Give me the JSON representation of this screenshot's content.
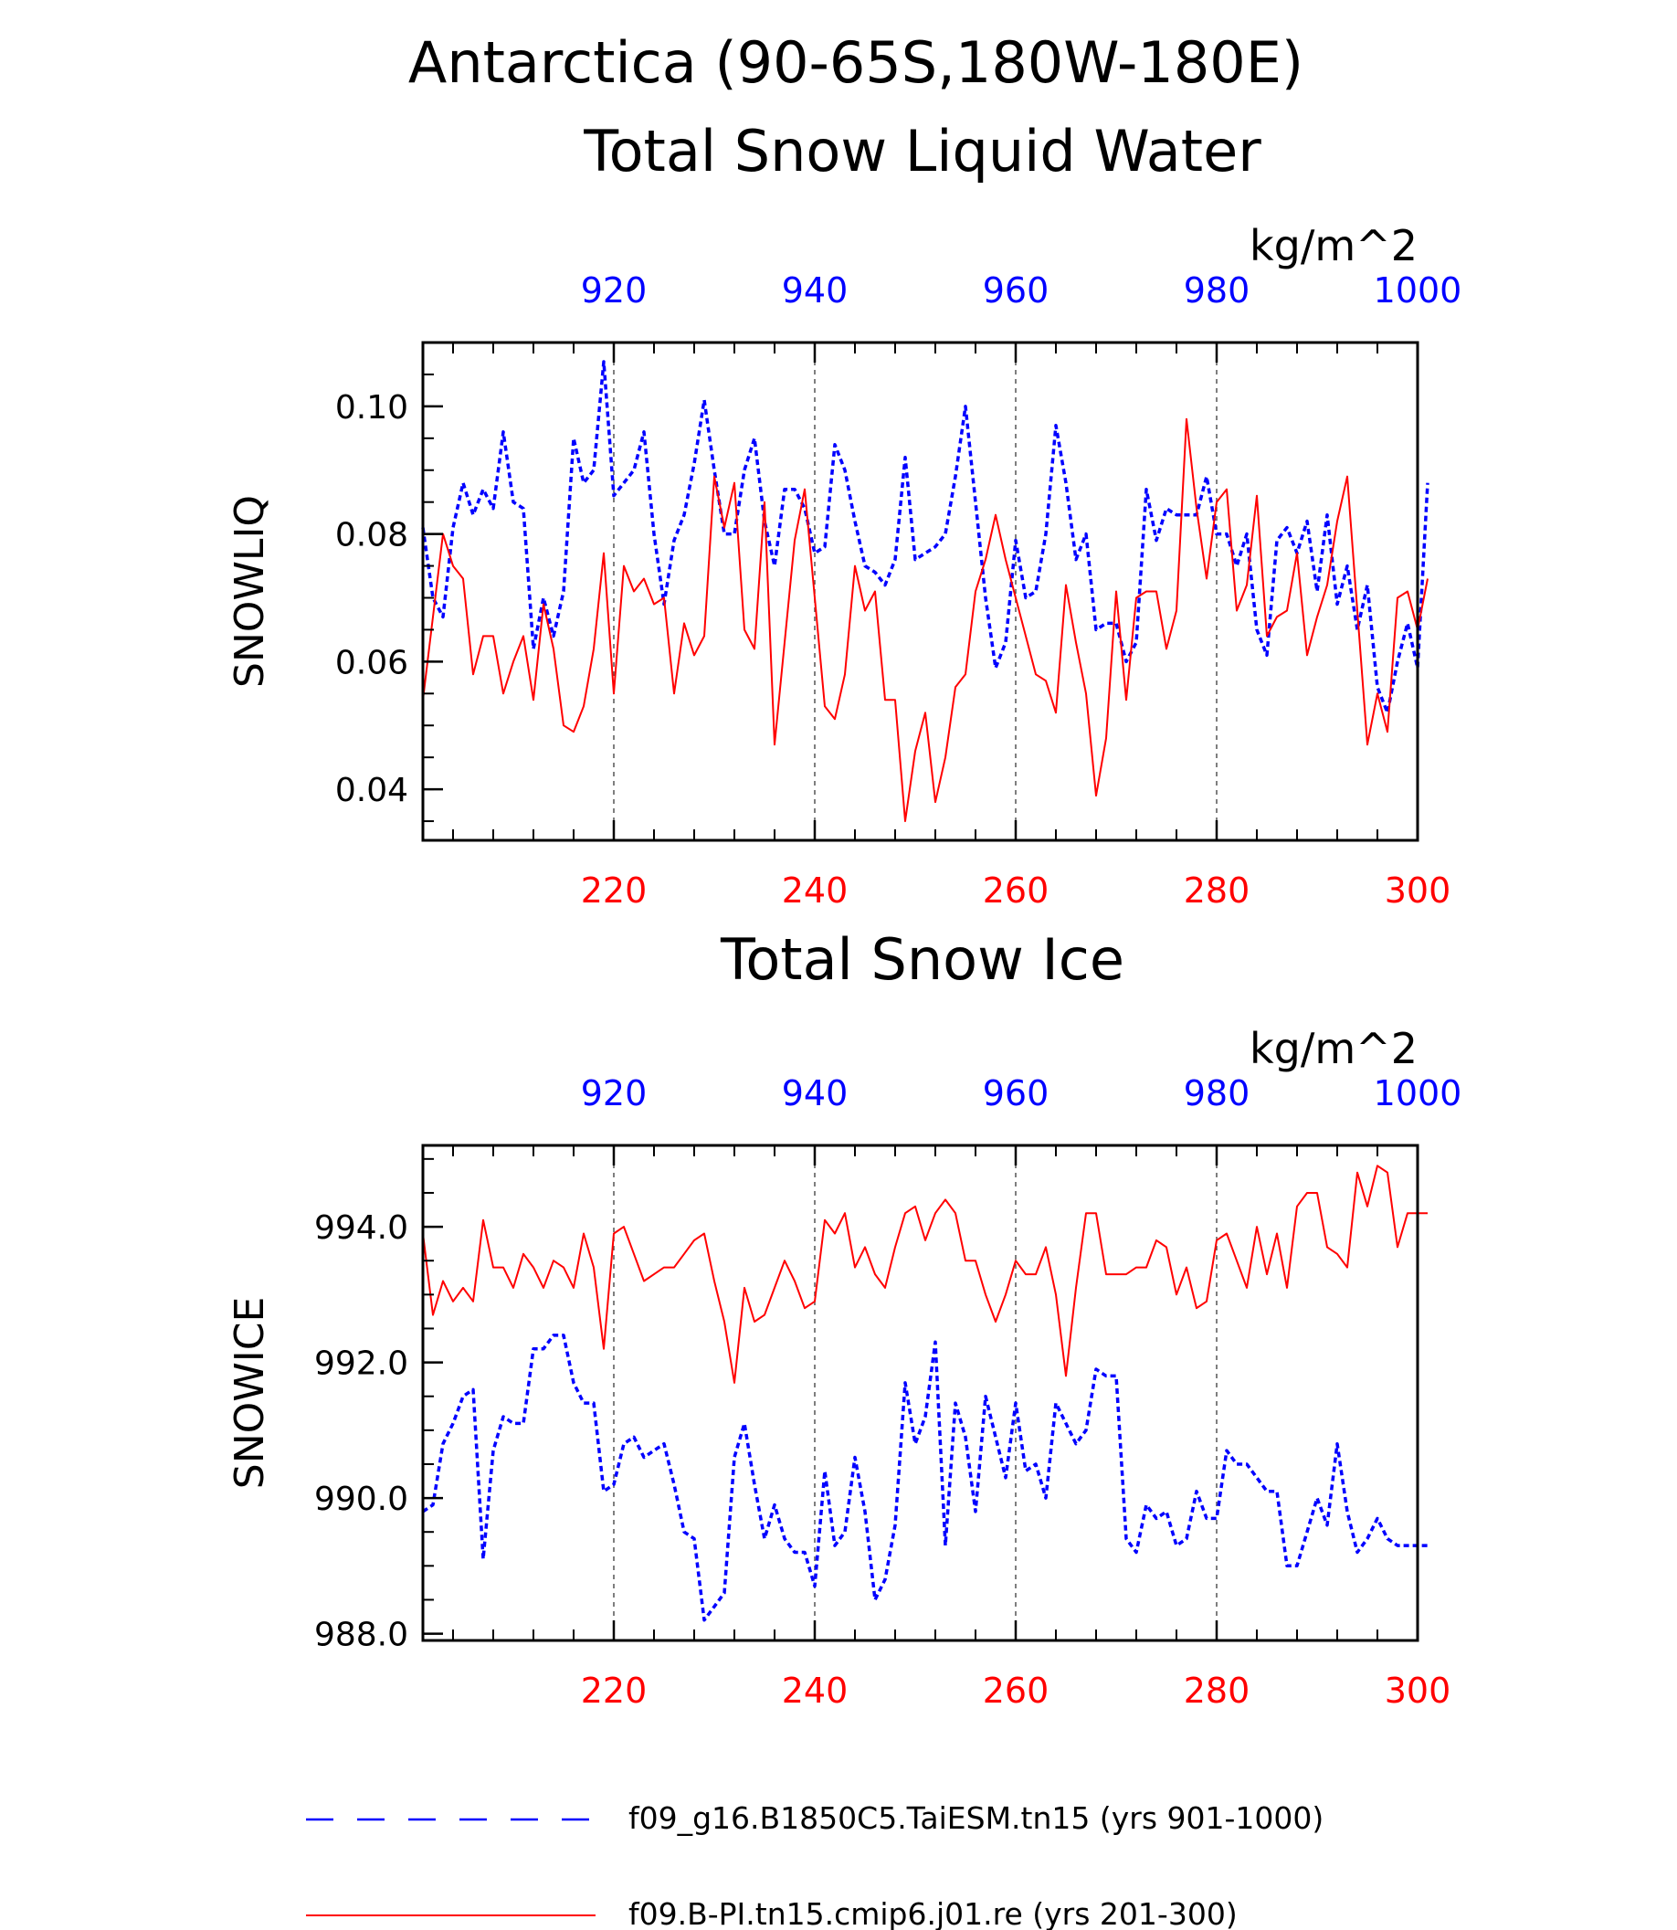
{
  "header": {
    "title_line1": "Antarctica (90-65S,180W-180E)"
  },
  "colors": {
    "red": "#ff0000",
    "blue": "#0000ff",
    "black": "#000000"
  },
  "legend": {
    "entries": [
      {
        "label": "f09_g16.B1850C5.TaiESM.tn15 (yrs 901-1000)",
        "color": "#0000ff",
        "style": "dashed"
      },
      {
        "label": "f09.B-PI.tn15.cmip6.j01.re (yrs 201-300)",
        "color": "#ff0000",
        "style": "solid"
      }
    ]
  },
  "chart_data": [
    {
      "type": "line",
      "title": "Total Snow Liquid Water",
      "ylabel": "SNOWLIQ",
      "units": "kg/m^2",
      "ylim": [
        0.032,
        0.11
      ],
      "yticks": [
        0.04,
        0.06,
        0.08,
        0.1
      ],
      "ytick_labels": [
        "0.04",
        "0.06",
        "0.08",
        "0.10"
      ],
      "y_minor_step": 0.005,
      "x_bottom": {
        "range": [
          201,
          300
        ],
        "ticks": [
          220,
          240,
          260,
          280,
          300
        ],
        "color": "#ff0000"
      },
      "x_top": {
        "range": [
          901,
          1000
        ],
        "ticks": [
          920,
          940,
          960,
          980,
          1000
        ],
        "color": "#0000ff"
      },
      "x_minor_step": 4,
      "grid": "vertical dashed at major ticks",
      "series": [
        {
          "name": "f09_g16.B1850C5.TaiESM.tn15 (yrs 901-1000)",
          "color": "#0000ff",
          "style": "dashed",
          "axis": "top",
          "values": [
            0.081,
            0.07,
            0.067,
            0.081,
            0.088,
            0.083,
            0.087,
            0.084,
            0.096,
            0.085,
            0.084,
            0.062,
            0.07,
            0.064,
            0.071,
            0.095,
            0.088,
            0.09,
            0.107,
            0.086,
            0.088,
            0.09,
            0.096,
            0.08,
            0.069,
            0.079,
            0.083,
            0.091,
            0.101,
            0.09,
            0.08,
            0.08,
            0.09,
            0.095,
            0.082,
            0.075,
            0.087,
            0.087,
            0.084,
            0.077,
            0.078,
            0.094,
            0.09,
            0.082,
            0.075,
            0.074,
            0.072,
            0.076,
            0.092,
            0.076,
            0.077,
            0.078,
            0.08,
            0.089,
            0.1,
            0.085,
            0.07,
            0.059,
            0.063,
            0.079,
            0.07,
            0.071,
            0.08,
            0.097,
            0.088,
            0.076,
            0.08,
            0.065,
            0.066,
            0.066,
            0.06,
            0.063,
            0.087,
            0.079,
            0.084,
            0.083,
            0.083,
            0.083,
            0.089,
            0.08,
            0.08,
            0.075,
            0.08,
            0.065,
            0.061,
            0.079,
            0.081,
            0.077,
            0.082,
            0.071,
            0.083,
            0.069,
            0.075,
            0.065,
            0.072,
            0.056,
            0.052,
            0.06,
            0.066,
            0.059,
            0.088
          ]
        },
        {
          "name": "f09.B-PI.tn15.cmip6.j01.re (yrs 201-300)",
          "color": "#ff0000",
          "style": "solid",
          "axis": "bottom",
          "values": [
            0.054,
            0.067,
            0.08,
            0.075,
            0.073,
            0.058,
            0.064,
            0.064,
            0.055,
            0.06,
            0.064,
            0.054,
            0.069,
            0.062,
            0.05,
            0.049,
            0.053,
            0.062,
            0.077,
            0.055,
            0.075,
            0.071,
            0.073,
            0.069,
            0.07,
            0.055,
            0.066,
            0.061,
            0.064,
            0.089,
            0.081,
            0.088,
            0.065,
            0.062,
            0.085,
            0.047,
            0.063,
            0.079,
            0.087,
            0.07,
            0.053,
            0.051,
            0.058,
            0.075,
            0.068,
            0.071,
            0.054,
            0.054,
            0.035,
            0.046,
            0.052,
            0.038,
            0.045,
            0.056,
            0.058,
            0.071,
            0.076,
            0.083,
            0.076,
            0.07,
            0.064,
            0.058,
            0.057,
            0.052,
            0.072,
            0.063,
            0.055,
            0.039,
            0.048,
            0.071,
            0.054,
            0.07,
            0.071,
            0.071,
            0.062,
            0.068,
            0.098,
            0.084,
            0.073,
            0.085,
            0.087,
            0.068,
            0.072,
            0.086,
            0.064,
            0.067,
            0.068,
            0.077,
            0.061,
            0.067,
            0.072,
            0.082,
            0.089,
            0.068,
            0.047,
            0.055,
            0.049,
            0.07,
            0.071,
            0.065,
            0.073
          ]
        }
      ]
    },
    {
      "type": "line",
      "title": "Total Snow Ice",
      "ylabel": "SNOWICE",
      "units": "kg/m^2",
      "ylim": [
        987.9,
        995.2
      ],
      "yticks": [
        988.0,
        990.0,
        992.0,
        994.0
      ],
      "ytick_labels": [
        "988.0",
        "990.0",
        "992.0",
        "994.0"
      ],
      "y_minor_step": 0.5,
      "x_bottom": {
        "range": [
          201,
          300
        ],
        "ticks": [
          220,
          240,
          260,
          280,
          300
        ],
        "color": "#ff0000"
      },
      "x_top": {
        "range": [
          901,
          1000
        ],
        "ticks": [
          920,
          940,
          960,
          980,
          1000
        ],
        "color": "#0000ff"
      },
      "x_minor_step": 4,
      "grid": "vertical dashed at major ticks",
      "series": [
        {
          "name": "f09_g16.B1850C5.TaiESM.tn15 (yrs 901-1000)",
          "color": "#0000ff",
          "style": "dashed",
          "axis": "top",
          "values": [
            989.8,
            989.9,
            990.8,
            991.1,
            991.5,
            991.6,
            989.1,
            990.7,
            991.2,
            991.1,
            991.1,
            992.2,
            992.2,
            992.4,
            992.4,
            991.7,
            991.4,
            991.4,
            990.1,
            990.2,
            990.8,
            990.9,
            990.6,
            990.7,
            990.8,
            990.2,
            989.5,
            989.4,
            988.2,
            988.4,
            988.6,
            990.6,
            991.1,
            990.2,
            989.4,
            989.9,
            989.4,
            989.2,
            989.2,
            988.7,
            990.4,
            989.3,
            989.5,
            990.6,
            989.8,
            988.5,
            988.8,
            989.6,
            991.7,
            990.8,
            991.2,
            992.3,
            989.3,
            991.4,
            990.9,
            989.8,
            991.5,
            990.9,
            990.3,
            991.4,
            990.4,
            990.5,
            990.0,
            991.4,
            991.1,
            990.8,
            991.0,
            991.9,
            991.8,
            991.8,
            989.4,
            989.2,
            989.9,
            989.7,
            989.8,
            989.3,
            989.4,
            990.1,
            989.7,
            989.7,
            990.7,
            990.5,
            990.5,
            990.3,
            990.1,
            990.1,
            989.0,
            989.0,
            989.5,
            990.0,
            989.6,
            990.8,
            989.8,
            989.2,
            989.4,
            989.7,
            989.4,
            989.3,
            989.3,
            989.3,
            989.3
          ]
        },
        {
          "name": "f09.B-PI.tn15.cmip6.j01.re (yrs 201-300)",
          "color": "#ff0000",
          "style": "solid",
          "axis": "bottom",
          "values": [
            993.9,
            992.7,
            993.2,
            992.9,
            993.1,
            992.9,
            994.1,
            993.4,
            993.4,
            993.1,
            993.6,
            993.4,
            993.1,
            993.5,
            993.4,
            993.1,
            993.9,
            993.4,
            992.2,
            993.9,
            994.0,
            993.6,
            993.2,
            993.3,
            993.4,
            993.4,
            993.6,
            993.8,
            993.9,
            993.2,
            992.6,
            991.7,
            993.1,
            992.6,
            992.7,
            993.1,
            993.5,
            993.2,
            992.8,
            992.9,
            994.1,
            993.9,
            994.2,
            993.4,
            993.7,
            993.3,
            993.1,
            993.7,
            994.2,
            994.3,
            993.8,
            994.2,
            994.4,
            994.2,
            993.5,
            993.5,
            993.0,
            992.6,
            993.0,
            993.5,
            993.3,
            993.3,
            993.7,
            993.0,
            991.8,
            993.1,
            994.2,
            994.2,
            993.3,
            993.3,
            993.3,
            993.4,
            993.4,
            993.8,
            993.7,
            993.0,
            993.4,
            992.8,
            992.9,
            993.8,
            993.9,
            993.5,
            993.1,
            994.0,
            993.3,
            993.9,
            993.1,
            994.3,
            994.5,
            994.5,
            993.7,
            993.6,
            993.4,
            994.8,
            994.3,
            994.9,
            994.8,
            993.7,
            994.2,
            994.2,
            994.2
          ]
        }
      ]
    }
  ]
}
